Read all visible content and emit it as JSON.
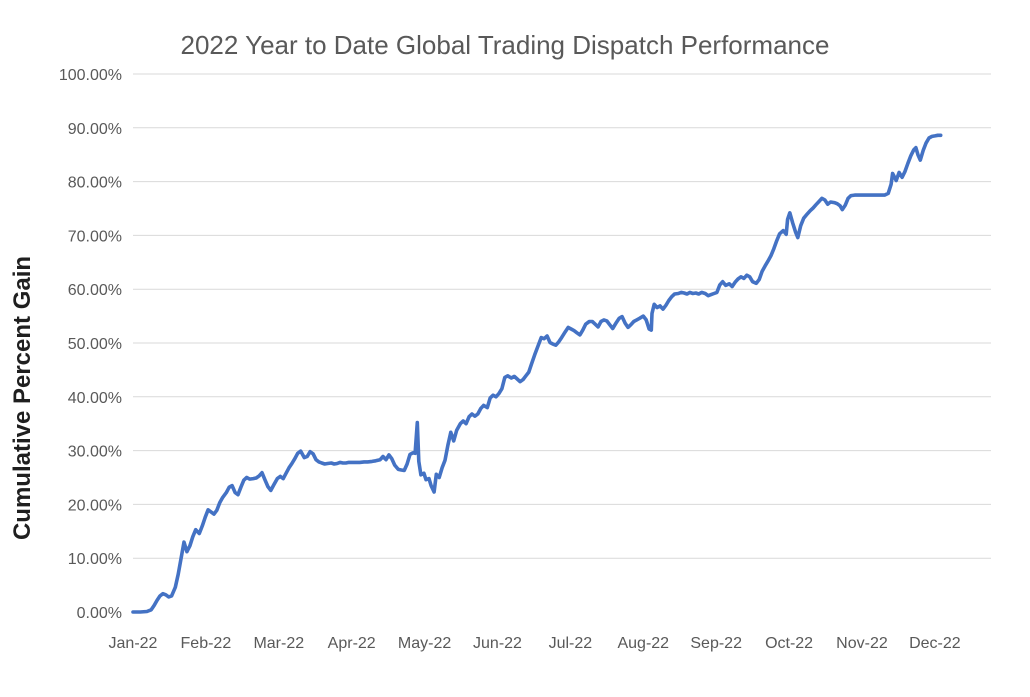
{
  "chart_data": {
    "type": "line",
    "title": "2022 Year to Date Global Trading Dispatch Performance",
    "xlabel": "",
    "ylabel": "Cumulative Percent Gain",
    "ylim": [
      0,
      100
    ],
    "y_tick_step": 10,
    "y_tick_labels": [
      "0.00%",
      "10.00%",
      "20.00%",
      "30.00%",
      "40.00%",
      "50.00%",
      "60.00%",
      "70.00%",
      "80.00%",
      "90.00%",
      "100.00%"
    ],
    "x_tick_labels": [
      "Jan-22",
      "Feb-22",
      "Mar-22",
      "Apr-22",
      "May-22",
      "Jun-22",
      "Jul-22",
      "Aug-22",
      "Sep-22",
      "Oct-22",
      "Nov-22",
      "Dec-22"
    ],
    "x_domain_months": [
      0,
      11.77
    ],
    "grid": "horizontal-only-10-to-100",
    "legend": "none",
    "line_color": "#4472C4",
    "gridline_color": "#D9D9D9",
    "text_color": "#595959",
    "series": [
      {
        "name": "Cumulative Percent Gain",
        "units": "percent",
        "points": [
          [
            0.0,
            0.0
          ],
          [
            0.1,
            0.0
          ],
          [
            0.19,
            0.1
          ],
          [
            0.25,
            0.4
          ],
          [
            0.29,
            1.2
          ],
          [
            0.33,
            2.2
          ],
          [
            0.37,
            3.0
          ],
          [
            0.41,
            3.4
          ],
          [
            0.45,
            3.2
          ],
          [
            0.49,
            2.8
          ],
          [
            0.53,
            3.0
          ],
          [
            0.58,
            4.6
          ],
          [
            0.62,
            7.0
          ],
          [
            0.66,
            10.0
          ],
          [
            0.7,
            13.0
          ],
          [
            0.74,
            11.2
          ],
          [
            0.78,
            12.3
          ],
          [
            0.82,
            14.0
          ],
          [
            0.86,
            15.3
          ],
          [
            0.91,
            14.6
          ],
          [
            0.95,
            16.0
          ],
          [
            0.99,
            17.6
          ],
          [
            1.03,
            19.0
          ],
          [
            1.07,
            18.6
          ],
          [
            1.11,
            18.2
          ],
          [
            1.15,
            18.9
          ],
          [
            1.19,
            20.3
          ],
          [
            1.23,
            21.3
          ],
          [
            1.28,
            22.2
          ],
          [
            1.32,
            23.2
          ],
          [
            1.36,
            23.5
          ],
          [
            1.4,
            22.2
          ],
          [
            1.44,
            21.8
          ],
          [
            1.48,
            23.2
          ],
          [
            1.52,
            24.5
          ],
          [
            1.56,
            25.0
          ],
          [
            1.6,
            24.7
          ],
          [
            1.65,
            24.8
          ],
          [
            1.69,
            24.9
          ],
          [
            1.73,
            25.3
          ],
          [
            1.77,
            25.9
          ],
          [
            1.81,
            24.6
          ],
          [
            1.85,
            23.3
          ],
          [
            1.89,
            22.6
          ],
          [
            1.93,
            23.6
          ],
          [
            1.98,
            24.8
          ],
          [
            2.02,
            25.2
          ],
          [
            2.06,
            24.8
          ],
          [
            2.1,
            25.8
          ],
          [
            2.14,
            26.8
          ],
          [
            2.18,
            27.6
          ],
          [
            2.22,
            28.5
          ],
          [
            2.26,
            29.5
          ],
          [
            2.3,
            29.9
          ],
          [
            2.35,
            28.7
          ],
          [
            2.39,
            28.9
          ],
          [
            2.43,
            29.8
          ],
          [
            2.47,
            29.4
          ],
          [
            2.51,
            28.3
          ],
          [
            2.55,
            27.9
          ],
          [
            2.59,
            27.7
          ],
          [
            2.63,
            27.5
          ],
          [
            2.67,
            27.6
          ],
          [
            2.72,
            27.7
          ],
          [
            2.76,
            27.5
          ],
          [
            2.8,
            27.6
          ],
          [
            2.84,
            27.8
          ],
          [
            2.88,
            27.7
          ],
          [
            2.92,
            27.7
          ],
          [
            2.96,
            27.8
          ],
          [
            3.0,
            27.8
          ],
          [
            3.06,
            27.8
          ],
          [
            3.11,
            27.8
          ],
          [
            3.17,
            27.9
          ],
          [
            3.22,
            27.9
          ],
          [
            3.28,
            28.0
          ],
          [
            3.33,
            28.1
          ],
          [
            3.39,
            28.3
          ],
          [
            3.43,
            28.9
          ],
          [
            3.47,
            28.3
          ],
          [
            3.51,
            29.2
          ],
          [
            3.55,
            28.5
          ],
          [
            3.59,
            27.3
          ],
          [
            3.64,
            26.5
          ],
          [
            3.68,
            26.4
          ],
          [
            3.72,
            26.3
          ],
          [
            3.76,
            27.5
          ],
          [
            3.8,
            29.3
          ],
          [
            3.84,
            29.6
          ],
          [
            3.87,
            29.5
          ],
          [
            3.9,
            35.2
          ],
          [
            3.92,
            28.0
          ],
          [
            3.95,
            25.5
          ],
          [
            3.99,
            25.8
          ],
          [
            4.02,
            24.6
          ],
          [
            4.06,
            24.8
          ],
          [
            4.09,
            23.5
          ],
          [
            4.13,
            22.3
          ],
          [
            4.16,
            25.6
          ],
          [
            4.2,
            25.0
          ],
          [
            4.24,
            26.8
          ],
          [
            4.28,
            28.2
          ],
          [
            4.32,
            31.0
          ],
          [
            4.36,
            33.4
          ],
          [
            4.4,
            31.8
          ],
          [
            4.44,
            33.8
          ],
          [
            4.49,
            35.0
          ],
          [
            4.53,
            35.5
          ],
          [
            4.57,
            35.0
          ],
          [
            4.61,
            36.3
          ],
          [
            4.65,
            36.8
          ],
          [
            4.69,
            36.4
          ],
          [
            4.73,
            36.8
          ],
          [
            4.77,
            37.8
          ],
          [
            4.81,
            38.4
          ],
          [
            4.86,
            38.0
          ],
          [
            4.9,
            39.8
          ],
          [
            4.94,
            40.3
          ],
          [
            4.98,
            40.0
          ],
          [
            5.02,
            40.6
          ],
          [
            5.06,
            41.5
          ],
          [
            5.1,
            43.6
          ],
          [
            5.14,
            43.9
          ],
          [
            5.19,
            43.5
          ],
          [
            5.23,
            43.8
          ],
          [
            5.27,
            43.3
          ],
          [
            5.31,
            42.8
          ],
          [
            5.35,
            43.2
          ],
          [
            5.39,
            43.9
          ],
          [
            5.43,
            44.6
          ],
          [
            5.47,
            46.2
          ],
          [
            5.51,
            47.8
          ],
          [
            5.56,
            49.6
          ],
          [
            5.6,
            51.0
          ],
          [
            5.64,
            50.8
          ],
          [
            5.68,
            51.3
          ],
          [
            5.72,
            50.1
          ],
          [
            5.76,
            49.8
          ],
          [
            5.8,
            49.6
          ],
          [
            5.84,
            50.2
          ],
          [
            5.88,
            51.0
          ],
          [
            5.93,
            52.1
          ],
          [
            5.97,
            52.9
          ],
          [
            6.01,
            52.6
          ],
          [
            6.05,
            52.3
          ],
          [
            6.09,
            51.9
          ],
          [
            6.13,
            51.5
          ],
          [
            6.17,
            52.4
          ],
          [
            6.21,
            53.5
          ],
          [
            6.26,
            54.0
          ],
          [
            6.3,
            54.0
          ],
          [
            6.34,
            53.5
          ],
          [
            6.38,
            53.0
          ],
          [
            6.42,
            54.0
          ],
          [
            6.46,
            54.3
          ],
          [
            6.5,
            54.1
          ],
          [
            6.54,
            53.4
          ],
          [
            6.58,
            52.7
          ],
          [
            6.63,
            53.8
          ],
          [
            6.67,
            54.6
          ],
          [
            6.71,
            54.9
          ],
          [
            6.75,
            53.7
          ],
          [
            6.79,
            52.9
          ],
          [
            6.83,
            53.4
          ],
          [
            6.87,
            54.0
          ],
          [
            6.91,
            54.3
          ],
          [
            6.95,
            54.6
          ],
          [
            7.0,
            55.0
          ],
          [
            7.04,
            54.3
          ],
          [
            7.08,
            52.6
          ],
          [
            7.11,
            52.4
          ],
          [
            7.12,
            55.5
          ],
          [
            7.15,
            57.2
          ],
          [
            7.19,
            56.6
          ],
          [
            7.23,
            56.9
          ],
          [
            7.27,
            56.3
          ],
          [
            7.31,
            57.0
          ],
          [
            7.35,
            57.9
          ],
          [
            7.39,
            58.6
          ],
          [
            7.43,
            59.1
          ],
          [
            7.48,
            59.2
          ],
          [
            7.52,
            59.4
          ],
          [
            7.56,
            59.3
          ],
          [
            7.6,
            59.1
          ],
          [
            7.64,
            59.4
          ],
          [
            7.68,
            59.2
          ],
          [
            7.72,
            59.3
          ],
          [
            7.76,
            59.1
          ],
          [
            7.8,
            59.4
          ],
          [
            7.85,
            59.2
          ],
          [
            7.89,
            58.8
          ],
          [
            7.93,
            59.0
          ],
          [
            7.97,
            59.2
          ],
          [
            8.01,
            59.4
          ],
          [
            8.05,
            60.8
          ],
          [
            8.09,
            61.4
          ],
          [
            8.13,
            60.7
          ],
          [
            8.18,
            61.0
          ],
          [
            8.22,
            60.5
          ],
          [
            8.26,
            61.3
          ],
          [
            8.3,
            61.9
          ],
          [
            8.34,
            62.3
          ],
          [
            8.38,
            62.0
          ],
          [
            8.42,
            62.6
          ],
          [
            8.46,
            62.3
          ],
          [
            8.5,
            61.4
          ],
          [
            8.55,
            61.1
          ],
          [
            8.59,
            61.8
          ],
          [
            8.63,
            63.3
          ],
          [
            8.67,
            64.3
          ],
          [
            8.71,
            65.2
          ],
          [
            8.75,
            66.2
          ],
          [
            8.79,
            67.5
          ],
          [
            8.83,
            69.0
          ],
          [
            8.87,
            70.3
          ],
          [
            8.92,
            70.9
          ],
          [
            8.96,
            70.2
          ],
          [
            8.98,
            73.0
          ],
          [
            9.01,
            74.2
          ],
          [
            9.05,
            72.3
          ],
          [
            9.09,
            70.6
          ],
          [
            9.12,
            69.6
          ],
          [
            9.16,
            71.8
          ],
          [
            9.2,
            73.2
          ],
          [
            9.25,
            74.0
          ],
          [
            9.29,
            74.6
          ],
          [
            9.33,
            75.1
          ],
          [
            9.37,
            75.7
          ],
          [
            9.41,
            76.3
          ],
          [
            9.45,
            76.9
          ],
          [
            9.49,
            76.6
          ],
          [
            9.53,
            75.8
          ],
          [
            9.57,
            76.2
          ],
          [
            9.62,
            76.1
          ],
          [
            9.66,
            75.9
          ],
          [
            9.7,
            75.5
          ],
          [
            9.73,
            74.8
          ],
          [
            9.77,
            75.6
          ],
          [
            9.81,
            76.9
          ],
          [
            9.85,
            77.4
          ],
          [
            9.9,
            77.5
          ],
          [
            9.97,
            77.5
          ],
          [
            10.04,
            77.5
          ],
          [
            10.11,
            77.5
          ],
          [
            10.18,
            77.5
          ],
          [
            10.25,
            77.5
          ],
          [
            10.31,
            77.5
          ],
          [
            10.36,
            77.8
          ],
          [
            10.4,
            79.5
          ],
          [
            10.42,
            81.5
          ],
          [
            10.47,
            80.2
          ],
          [
            10.51,
            81.7
          ],
          [
            10.55,
            80.8
          ],
          [
            10.59,
            81.9
          ],
          [
            10.63,
            83.4
          ],
          [
            10.67,
            84.8
          ],
          [
            10.71,
            85.9
          ],
          [
            10.74,
            86.3
          ],
          [
            10.77,
            84.9
          ],
          [
            10.8,
            84.0
          ],
          [
            10.84,
            85.8
          ],
          [
            10.88,
            87.2
          ],
          [
            10.92,
            88.1
          ],
          [
            10.96,
            88.4
          ],
          [
            11.0,
            88.5
          ],
          [
            11.04,
            88.6
          ],
          [
            11.08,
            88.6
          ]
        ]
      }
    ]
  }
}
